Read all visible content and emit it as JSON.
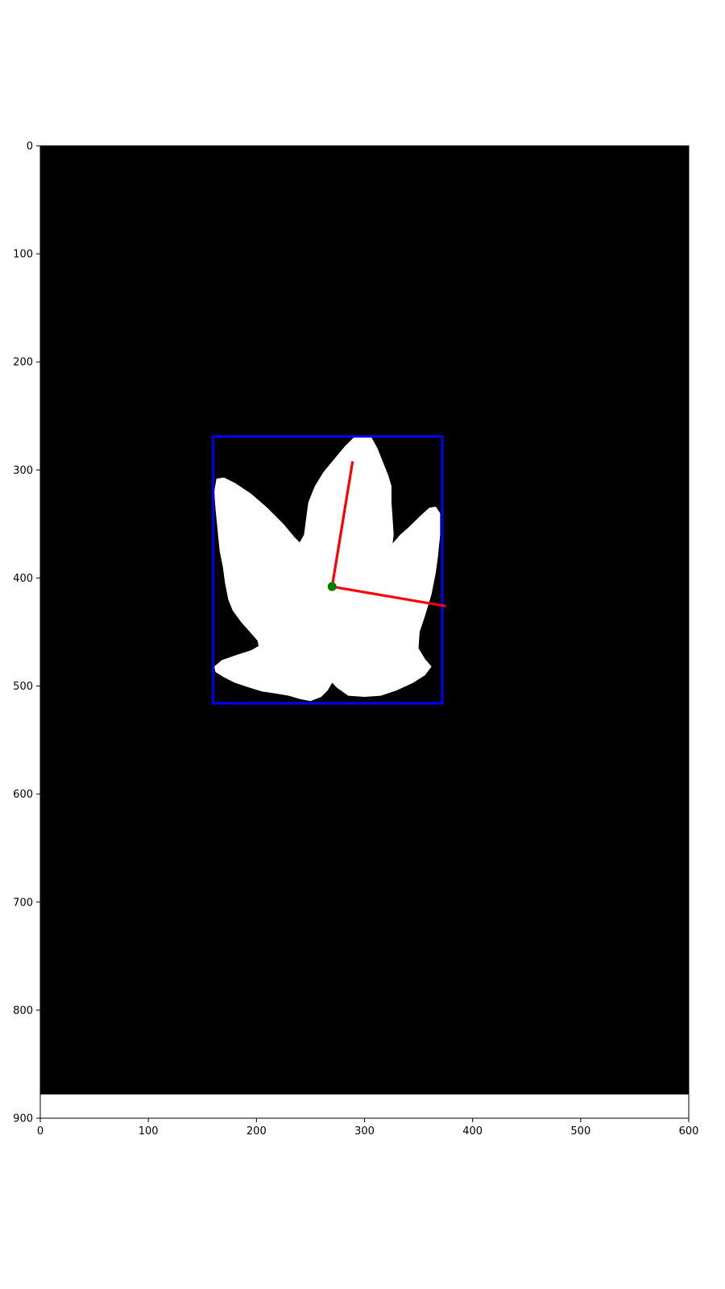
{
  "chart_data": {
    "type": "image",
    "title": "",
    "xlabel": "",
    "ylabel": "",
    "xlim": [
      0,
      600
    ],
    "ylim": [
      900,
      0
    ],
    "y_inverted": true,
    "x_ticks": [
      0,
      100,
      200,
      300,
      400,
      500,
      600
    ],
    "x_tick_labels": [
      "0",
      "100",
      "200",
      "300",
      "400",
      "500",
      "600"
    ],
    "y_ticks": [
      0,
      100,
      200,
      300,
      400,
      500,
      600,
      700,
      800,
      900
    ],
    "y_tick_labels": [
      "0",
      "100",
      "200",
      "300",
      "400",
      "500",
      "600",
      "700",
      "800",
      "900"
    ],
    "image_extent_rows": 878,
    "background_color": "#000000",
    "below_image_color": "#ffffff",
    "leaf_color": "#ffffff",
    "leaf_outline": [
      [
        295,
        268
      ],
      [
        306,
        269
      ],
      [
        312,
        280
      ],
      [
        318,
        295
      ],
      [
        322,
        305
      ],
      [
        325,
        315
      ],
      [
        325,
        330
      ],
      [
        326,
        345
      ],
      [
        327,
        360
      ],
      [
        326,
        368
      ],
      [
        333,
        360
      ],
      [
        342,
        352
      ],
      [
        352,
        342
      ],
      [
        360,
        335
      ],
      [
        366,
        334
      ],
      [
        370,
        340
      ],
      [
        370,
        360
      ],
      [
        368,
        380
      ],
      [
        366,
        395
      ],
      [
        362,
        415
      ],
      [
        356,
        435
      ],
      [
        351,
        450
      ],
      [
        350,
        465
      ],
      [
        356,
        475
      ],
      [
        362,
        482
      ],
      [
        356,
        490
      ],
      [
        345,
        497
      ],
      [
        330,
        504
      ],
      [
        315,
        509
      ],
      [
        300,
        510
      ],
      [
        285,
        509
      ],
      [
        275,
        502
      ],
      [
        270,
        497
      ],
      [
        266,
        504
      ],
      [
        260,
        510
      ],
      [
        250,
        514
      ],
      [
        240,
        512
      ],
      [
        230,
        509
      ],
      [
        218,
        507
      ],
      [
        205,
        505
      ],
      [
        192,
        501
      ],
      [
        180,
        497
      ],
      [
        170,
        492
      ],
      [
        162,
        487
      ],
      [
        161,
        482
      ],
      [
        168,
        476
      ],
      [
        182,
        471
      ],
      [
        195,
        467
      ],
      [
        202,
        463
      ],
      [
        201,
        458
      ],
      [
        194,
        450
      ],
      [
        186,
        441
      ],
      [
        178,
        430
      ],
      [
        174,
        420
      ],
      [
        171,
        405
      ],
      [
        169,
        390
      ],
      [
        166,
        375
      ],
      [
        164,
        355
      ],
      [
        162,
        335
      ],
      [
        161,
        320
      ],
      [
        163,
        308
      ],
      [
        170,
        307
      ],
      [
        180,
        312
      ],
      [
        195,
        322
      ],
      [
        210,
        335
      ],
      [
        225,
        350
      ],
      [
        235,
        362
      ],
      [
        240,
        367
      ],
      [
        244,
        360
      ],
      [
        246,
        345
      ],
      [
        248,
        330
      ],
      [
        254,
        315
      ],
      [
        262,
        302
      ],
      [
        272,
        290
      ],
      [
        282,
        278
      ],
      [
        290,
        270
      ]
    ],
    "bounding_box": {
      "x_min": 160,
      "y_min": 269,
      "x_max": 372,
      "y_max": 516,
      "color": "#0000ff"
    },
    "centroid": {
      "x": 270,
      "y": 408,
      "color": "#008000"
    },
    "axes_lines": {
      "color": "#ff0000",
      "lines": [
        {
          "from": [
            270,
            408
          ],
          "to": [
            289,
            292
          ]
        },
        {
          "from": [
            270,
            408
          ],
          "to": [
            375,
            426
          ]
        }
      ]
    }
  }
}
